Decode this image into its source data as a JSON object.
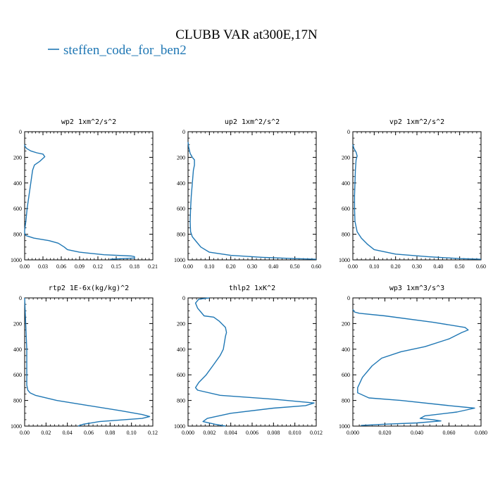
{
  "title": "CLUBB VAR at300E,17N",
  "legend": {
    "label": "steffen_code_for_ben2",
    "color": "#1f77b4"
  },
  "chart_data": [
    {
      "type": "line",
      "title": "wp2   1xm^2/s^2",
      "xlim": [
        0,
        0.21
      ],
      "ylim": [
        1000,
        0
      ],
      "xticks": [
        "0.00",
        "0.03",
        "0.06",
        "0.09",
        "0.12",
        "0.15",
        "0.18",
        "0.21"
      ],
      "yticks": [
        "0",
        "200",
        "400",
        "600",
        "800",
        "1000"
      ],
      "series": [
        {
          "name": "steffen_code_for_ben2",
          "color": "#1f77b4",
          "x": [
            0.0,
            0.0,
            0.003,
            0.01,
            0.02,
            0.03,
            0.033,
            0.025,
            0.016,
            0.013,
            0.01,
            0.007,
            0.004,
            0.002,
            0.0,
            0.0,
            0.002,
            0.015,
            0.04,
            0.055,
            0.065,
            0.07,
            0.09,
            0.13,
            0.175,
            0.18,
            0.18,
            0.14
          ],
          "y": [
            100,
            110,
            130,
            150,
            165,
            175,
            195,
            230,
            260,
            300,
            400,
            500,
            600,
            700,
            770,
            790,
            810,
            830,
            850,
            870,
            900,
            920,
            940,
            960,
            970,
            975,
            985,
            995
          ]
        }
      ]
    },
    {
      "type": "line",
      "title": "up2   1xm^2/s^2",
      "xlim": [
        0,
        0.6
      ],
      "ylim": [
        1000,
        0
      ],
      "xticks": [
        "0.00",
        "0.10",
        "0.20",
        "0.30",
        "0.40",
        "0.50",
        "0.60"
      ],
      "yticks": [
        "0",
        "200",
        "400",
        "600",
        "800",
        "1000"
      ],
      "series": [
        {
          "name": "steffen_code_for_ben2",
          "color": "#1f77b4",
          "x": [
            0.0,
            0.003,
            0.01,
            0.02,
            0.03,
            0.03,
            0.025,
            0.02,
            0.015,
            0.012,
            0.01,
            0.012,
            0.02,
            0.04,
            0.06,
            0.1,
            0.2,
            0.35,
            0.5,
            0.6
          ],
          "y": [
            80,
            120,
            170,
            200,
            220,
            260,
            300,
            400,
            500,
            600,
            700,
            780,
            820,
            860,
            900,
            940,
            965,
            980,
            990,
            995
          ]
        }
      ]
    },
    {
      "type": "line",
      "title": "vp2   1xm^2/s^2",
      "xlim": [
        0,
        0.6
      ],
      "ylim": [
        1000,
        0
      ],
      "xticks": [
        "0.00",
        "0.10",
        "0.20",
        "0.30",
        "0.40",
        "0.50",
        "0.60"
      ],
      "yticks": [
        "0",
        "200",
        "400",
        "600",
        "800",
        "1000"
      ],
      "series": [
        {
          "name": "steffen_code_for_ben2",
          "color": "#1f77b4",
          "x": [
            0.0,
            0.005,
            0.015,
            0.02,
            0.015,
            0.012,
            0.01,
            0.008,
            0.008,
            0.01,
            0.02,
            0.04,
            0.07,
            0.1,
            0.2,
            0.35,
            0.5,
            0.6
          ],
          "y": [
            100,
            130,
            160,
            190,
            220,
            300,
            400,
            500,
            600,
            700,
            780,
            830,
            880,
            920,
            955,
            975,
            990,
            995
          ]
        }
      ]
    },
    {
      "type": "line",
      "title": "rtp2   1E-6x(kg/kg)^2",
      "xlim": [
        0,
        0.12
      ],
      "ylim": [
        1000,
        0
      ],
      "xticks": [
        "0.00",
        "0.02",
        "0.04",
        "0.06",
        "0.08",
        "0.10",
        "0.12"
      ],
      "yticks": [
        "0",
        "200",
        "400",
        "600",
        "800",
        "1000"
      ],
      "series": [
        {
          "name": "steffen_code_for_ben2",
          "color": "#1f77b4",
          "x": [
            0.0,
            0.001,
            0.002,
            0.002,
            0.002,
            0.003,
            0.005,
            0.01,
            0.03,
            0.06,
            0.09,
            0.11,
            0.117,
            0.11,
            0.07,
            0.055,
            0.05
          ],
          "y": [
            0,
            200,
            400,
            600,
            680,
            720,
            740,
            760,
            800,
            840,
            880,
            910,
            925,
            940,
            965,
            985,
            1000
          ]
        }
      ]
    },
    {
      "type": "line",
      "title": "thlp2   1xK^2",
      "xlim": [
        0,
        0.012
      ],
      "ylim": [
        1000,
        0
      ],
      "xticks": [
        "0.000",
        "0.002",
        "0.004",
        "0.006",
        "0.008",
        "0.010",
        "0.012"
      ],
      "yticks": [
        "0",
        "200",
        "400",
        "600",
        "800",
        "1000"
      ],
      "series": [
        {
          "name": "steffen_code_for_ben2",
          "color": "#1f77b4",
          "x": [
            0.002,
            0.001,
            0.0007,
            0.0009,
            0.0012,
            0.0015,
            0.0024,
            0.0029,
            0.0035,
            0.0036,
            0.0035,
            0.0034,
            0.0033,
            0.003,
            0.0024,
            0.0017,
            0.001,
            0.0007,
            0.0009,
            0.003,
            0.008,
            0.0118,
            0.011,
            0.008,
            0.004,
            0.0018,
            0.0014,
            0.0025,
            0.0035
          ],
          "y": [
            0,
            10,
            40,
            80,
            110,
            140,
            150,
            180,
            230,
            270,
            300,
            350,
            400,
            450,
            520,
            600,
            660,
            700,
            720,
            760,
            790,
            820,
            840,
            860,
            900,
            940,
            965,
            985,
            1000
          ]
        }
      ]
    },
    {
      "type": "line",
      "title": "wp3   1xm^3/s^3",
      "xlim": [
        0,
        0.08
      ],
      "ylim": [
        1000,
        0
      ],
      "xticks": [
        "0.000",
        "0.020",
        "0.040",
        "0.060",
        "0.080"
      ],
      "yticks": [
        "0",
        "200",
        "400",
        "600",
        "800",
        "1000"
      ],
      "series": [
        {
          "name": "steffen_code_for_ben2",
          "color": "#1f77b4",
          "x": [
            0.0,
            0.001,
            0.004,
            0.02,
            0.05,
            0.07,
            0.072,
            0.068,
            0.06,
            0.045,
            0.03,
            0.018,
            0.012,
            0.006,
            0.003,
            0.003,
            0.01,
            0.03,
            0.06,
            0.076,
            0.065,
            0.045,
            0.042,
            0.05,
            0.055,
            0.04,
            0.02,
            0.005
          ],
          "y": [
            90,
            110,
            120,
            140,
            190,
            230,
            250,
            270,
            320,
            380,
            420,
            470,
            530,
            620,
            700,
            740,
            780,
            800,
            840,
            860,
            890,
            920,
            940,
            950,
            960,
            975,
            985,
            995
          ]
        }
      ]
    }
  ]
}
